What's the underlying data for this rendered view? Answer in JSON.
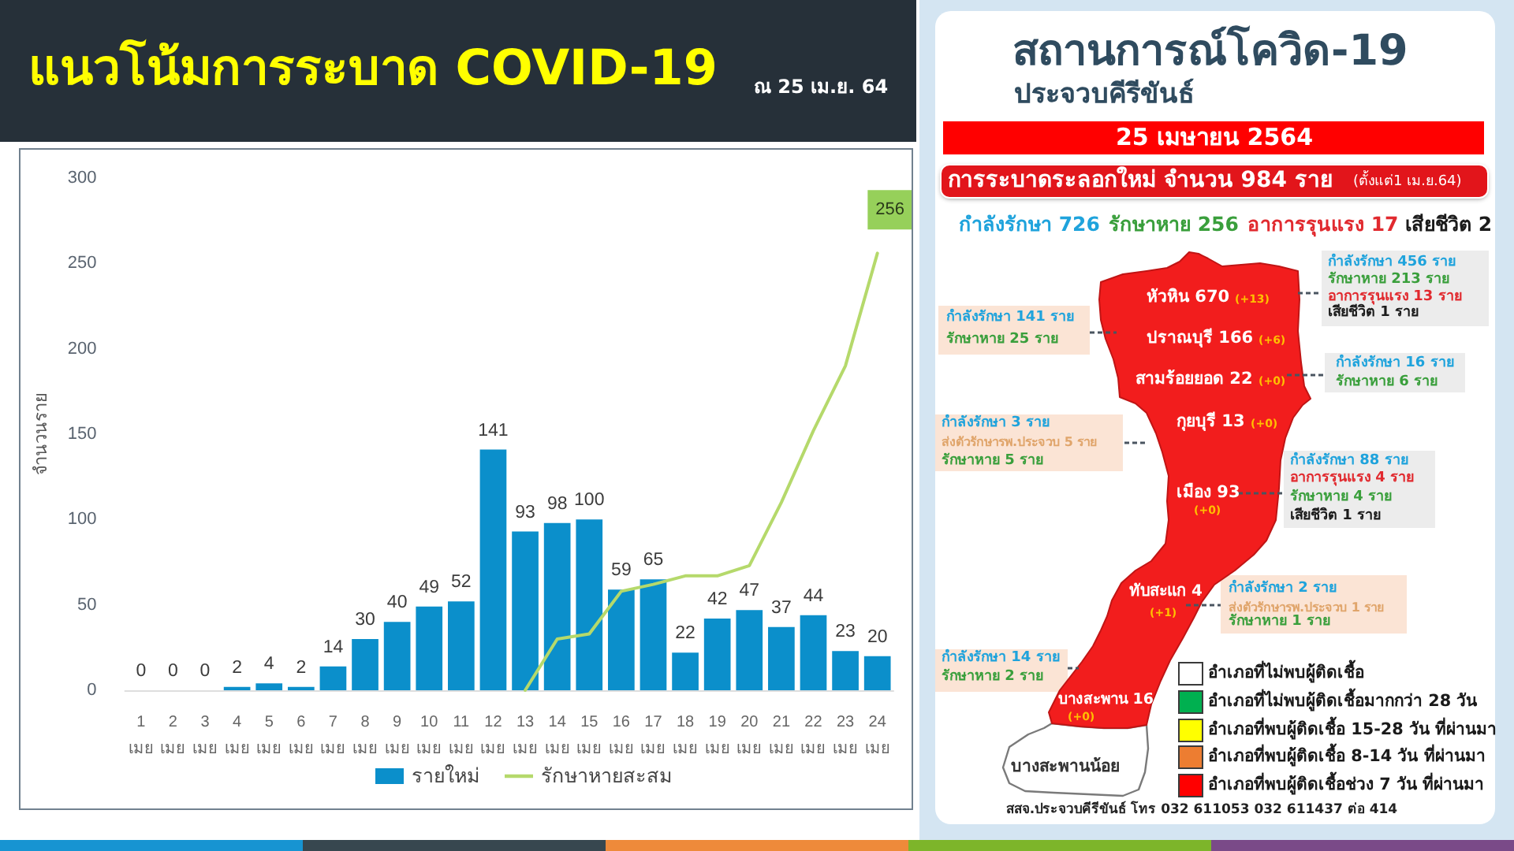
{
  "chart_data": [
    {
      "type": "bar",
      "title": "แนวโน้มการระบาด COVID-19",
      "subtitle": "ณ 25 เม.ย. 64",
      "ylabel": "จำนวนราย",
      "categories": [
        "1\nเมย",
        "2\nเมย",
        "3\nเมย",
        "4\nเมย",
        "5\nเมย",
        "6\nเมย",
        "7\nเมย",
        "8\nเมย",
        "9\nเมย",
        "10\nเมย",
        "11\nเมย",
        "12\nเมย",
        "13\nเมย",
        "14\nเมย",
        "15\nเมย",
        "16\nเมย",
        "17\nเมย",
        "18\nเมย",
        "19\nเมย",
        "20\nเมย",
        "21\nเมย",
        "22\nเมย",
        "23\nเมย",
        "24\nเมย"
      ],
      "series": [
        {
          "name": "รายใหม่",
          "type": "bar",
          "color": "#0b8fcb",
          "values": [
            0,
            0,
            0,
            2,
            4,
            2,
            14,
            30,
            40,
            49,
            52,
            141,
            93,
            98,
            100,
            59,
            65,
            22,
            42,
            47,
            37,
            44,
            23,
            20
          ],
          "value_labels": [
            "0",
            "0",
            "0",
            "2",
            "4",
            "2",
            "14",
            "30",
            "40",
            "49",
            "52",
            "141",
            "93",
            "98",
            "100",
            "59",
            "65",
            "22",
            "42",
            "47",
            "37",
            "44",
            "23",
            "20"
          ]
        },
        {
          "name": "รักษาหายสะสม",
          "type": "line",
          "color": "#b5d96b",
          "values": [
            null,
            null,
            null,
            null,
            null,
            null,
            null,
            null,
            null,
            null,
            null,
            null,
            0,
            30,
            33,
            58,
            62,
            67,
            67,
            73,
            110,
            152,
            190,
            256
          ],
          "value_labels": [
            null,
            null,
            null,
            null,
            null,
            null,
            null,
            null,
            null,
            null,
            null,
            null,
            null,
            null,
            null,
            null,
            null,
            null,
            null,
            null,
            null,
            null,
            null,
            "256"
          ]
        }
      ],
      "ylim": [
        0,
        300
      ],
      "yticks": [
        0,
        50,
        100,
        150,
        200,
        250,
        300
      ],
      "marker": "none",
      "legend": "bottom"
    },
    {
      "type": "other",
      "title": "สถานการณ์โควิด-19",
      "subtitle": "ประจวบคีรีขันธ์",
      "annotations": [
        "25 เมษายน 2564",
        "การระบาดระลอกใหม่ จำนวน 984 ราย",
        "(ตั้งแต่1 เม.ย.64)",
        "กำลังรักษา 726",
        "รักษาหาย 256",
        "อาการรุนแรง 17",
        "เสียชีวิต 2",
        "กำลังรักษา 456 ราย",
        "รักษาหาย 213 ราย",
        "อาการรุนแรง 13 ราย",
        "เสียชีวิต 1 ราย",
        "กำลังรักษา 141 ราย",
        "รักษาหาย 25 ราย",
        "กำลังรักษา 16 ราย",
        "รักษาหาย 6 ราย",
        "กำลังรักษา 3 ราย",
        "ส่งตัวรักษารพ.ประจวบ 5 ราย",
        "รักษาหาย 5 ราย",
        "กำลังรักษา 88 ราย",
        "อาการรุนแรง 4 ราย",
        "รักษาหาย 4 ราย",
        "เสียชีวิต 1 ราย",
        "กำลังรักษา 2 ราย",
        "ส่งตัวรักษารพ.ประจวบ 1 ราย",
        "รักษาหาย 1 ราย",
        "กำลังรักษา 14 ราย",
        "รักษาหาย 2 ราย",
        "หัวหิน 670",
        "(+13)",
        "ปราณบุรี 166",
        "(+6)",
        "สามร้อยยอด 22",
        "(+0)",
        "กุยบุรี 13",
        "(+0)",
        "เมือง 93",
        "(+0)",
        "ทับสะแก 4",
        "(+1)",
        "บางสะพาน 16",
        "(+0)",
        "บางสะพานน้อย",
        "สสจ.ประจวบคีรีขันธ์ โทร 032 611053 032 611437 ต่อ 414"
      ],
      "series": [
        {
          "name": "อำเภอที่ไม่พบผู้ติดเชื้อ",
          "color": "#ffffff"
        },
        {
          "name": "อำเภอที่ไม่พบผู้ติดเชื้อมากกว่า 28 วัน",
          "color": "#00b050"
        },
        {
          "name": "อำเภอที่พบผู้ติดเชื้อ 15-28 วัน ที่ผ่านมา",
          "color": "#ffff00"
        },
        {
          "name": "อำเภอที่พบผู้ติดเชื้อ 8-14 วัน ที่ผ่านมา",
          "color": "#ed7d31"
        },
        {
          "name": "อำเภอที่พบผู้ติดเชื้อช่วง 7 วัน ที่ผ่านมา",
          "color": "#ff0000"
        }
      ],
      "legend": "bottom right"
    }
  ]
}
